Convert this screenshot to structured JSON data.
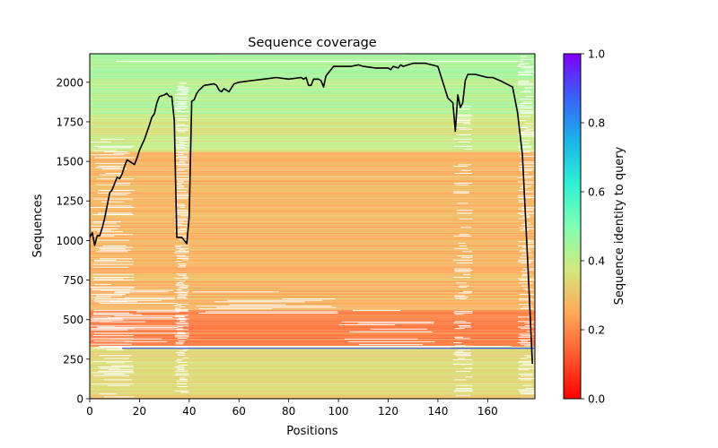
{
  "chart_data": [
    {
      "type": "heatmap",
      "title": "Sequence coverage",
      "xlabel": "Positions",
      "ylabel": "Sequences",
      "xlim": [
        0,
        179
      ],
      "ylim": [
        0,
        2180
      ],
      "x_ticks": [
        0,
        20,
        40,
        60,
        80,
        100,
        120,
        140,
        160
      ],
      "y_ticks": [
        0,
        250,
        500,
        750,
        1000,
        1250,
        1500,
        1750,
        2000
      ],
      "colormap": "rainbow_r",
      "color_range": [
        0.0,
        1.0
      ],
      "identity_bands": [
        {
          "y_from": 0,
          "y_to": 20,
          "identity": 0.3
        },
        {
          "y_from": 20,
          "y_to": 330,
          "identity": 0.34
        },
        {
          "y_from": 318,
          "y_to": 322,
          "identity": 0.88,
          "x_from": 13,
          "x_to": 179
        },
        {
          "y_from": 330,
          "y_to": 560,
          "identity": 0.18
        },
        {
          "y_from": 560,
          "y_to": 1560,
          "identity": 0.27
        },
        {
          "y_from": 1560,
          "y_to": 1800,
          "identity": 0.38
        },
        {
          "y_from": 1800,
          "y_to": 2180,
          "identity": 0.43
        }
      ],
      "series": [
        {
          "name": "coverage",
          "color": "#000000",
          "x": [
            0,
            1,
            2,
            3,
            4,
            5,
            6,
            7,
            8,
            9,
            10,
            11,
            12,
            13,
            14,
            15,
            16,
            17,
            18,
            19,
            20,
            22,
            24,
            25,
            26,
            27,
            28,
            30,
            31,
            32,
            33,
            34,
            35,
            36,
            37,
            38,
            39,
            40,
            41,
            42,
            43,
            44,
            46,
            48,
            50,
            51,
            52,
            53,
            54,
            56,
            58,
            60,
            65,
            70,
            75,
            80,
            85,
            86,
            87,
            88,
            89,
            90,
            92,
            93,
            94,
            95,
            96,
            98,
            100,
            105,
            108,
            110,
            115,
            120,
            121,
            122,
            124,
            125,
            126,
            130,
            135,
            140,
            144,
            146,
            147,
            148,
            149,
            150,
            151,
            152,
            153,
            155,
            160,
            162,
            165,
            170,
            172,
            174,
            176,
            178
          ],
          "y": [
            1020,
            1050,
            970,
            1030,
            1030,
            1080,
            1140,
            1220,
            1300,
            1320,
            1360,
            1400,
            1390,
            1420,
            1470,
            1510,
            1500,
            1490,
            1480,
            1520,
            1570,
            1640,
            1730,
            1780,
            1800,
            1870,
            1910,
            1920,
            1930,
            1910,
            1910,
            1760,
            1020,
            1020,
            1020,
            1000,
            980,
            1150,
            1880,
            1890,
            1930,
            1950,
            1980,
            1985,
            1990,
            1980,
            1950,
            1940,
            1960,
            1940,
            1990,
            2000,
            2010,
            2020,
            2030,
            2020,
            2030,
            2020,
            2030,
            1980,
            1980,
            2020,
            2020,
            2010,
            1970,
            2040,
            2060,
            2100,
            2100,
            2100,
            2110,
            2100,
            2090,
            2090,
            2080,
            2100,
            2090,
            2110,
            2100,
            2120,
            2120,
            2100,
            1900,
            1870,
            1690,
            1920,
            1840,
            1870,
            2010,
            2050,
            2050,
            2050,
            2030,
            2030,
            2010,
            1970,
            1810,
            1540,
            900,
            220
          ]
        }
      ]
    },
    {
      "type": "colorbar",
      "label": "Sequence identity to query",
      "range": [
        0.0,
        1.0
      ],
      "ticks": [
        "0.0",
        "0.2",
        "0.4",
        "0.6",
        "0.8",
        "1.0"
      ]
    }
  ]
}
